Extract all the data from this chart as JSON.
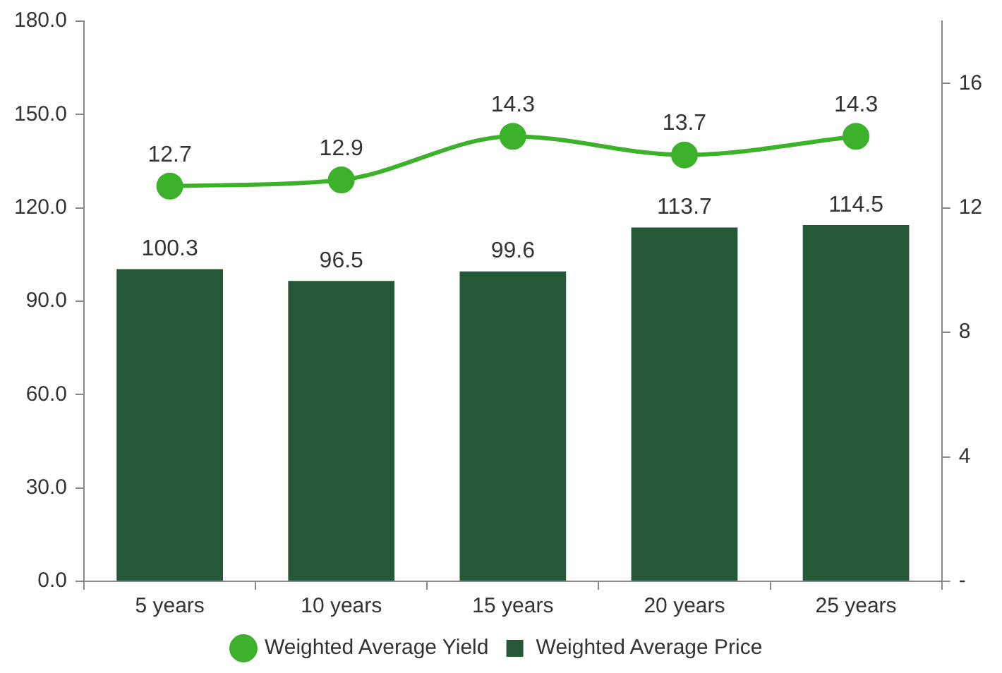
{
  "chart_data": {
    "type": "bar",
    "categories": [
      "5 years",
      "10 years",
      "15 years",
      "20 years",
      "25 years"
    ],
    "series": [
      {
        "name": "Weighted Average Price",
        "color": "#245836",
        "values": [
          100.3,
          96.5,
          99.6,
          113.7,
          114.5
        ]
      },
      {
        "name": "Weighted Average Yield",
        "type": "line",
        "axis": "y2",
        "color": "#3cb22a",
        "values": [
          12.7,
          12.9,
          14.3,
          13.7,
          14.3
        ]
      }
    ],
    "ylim": [
      0,
      180
    ],
    "yticks": [
      {
        "value": 0,
        "label": "0.0"
      },
      {
        "value": 30,
        "label": "30.0"
      },
      {
        "value": 60,
        "label": "60.0"
      },
      {
        "value": 90,
        "label": "90.0"
      },
      {
        "value": 120,
        "label": "120.0"
      },
      {
        "value": 150,
        "label": "150.0"
      },
      {
        "value": 180,
        "label": "180.0"
      }
    ],
    "y2lim": [
      0,
      18
    ],
    "y2ticks": [
      {
        "value": 0,
        "label": "-"
      },
      4,
      8,
      12,
      16
    ],
    "data_labels": true,
    "legend": "bottom",
    "grid": false,
    "marker": "circle"
  }
}
